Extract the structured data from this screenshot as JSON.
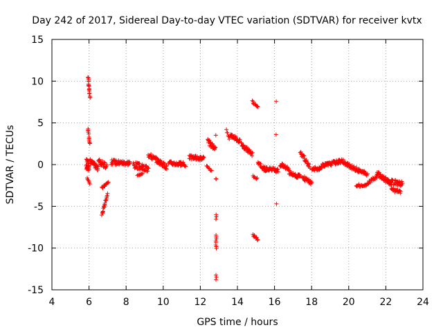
{
  "chart_data": {
    "type": "scatter",
    "title": "Day 242 of 2017, Sidereal Day-to-day VTEC variation (SDTVAR) for receiver kvtx",
    "xlabel": "GPS time / hours",
    "ylabel": "SDTVAR / TECUs",
    "xlim": [
      4,
      24
    ],
    "ylim": [
      -15,
      15
    ],
    "xticks": [
      "4",
      "6",
      "8",
      "10",
      "12",
      "14",
      "16",
      "18",
      "20",
      "22",
      "24"
    ],
    "yticks": [
      "15",
      "10",
      "5",
      "0",
      "-5",
      "-10",
      "-15"
    ],
    "grid": true,
    "marker": "+",
    "color": "#ff0000",
    "series": [
      {
        "name": "SDTVAR",
        "segments": [
          {
            "x0": 5.85,
            "x1": 6.0,
            "y0": 0.0,
            "y1": 0.0,
            "spread": 1.5,
            "n": 25
          },
          {
            "x0": 5.95,
            "x1": 6.05,
            "y0": 10.4,
            "y1": 8.0,
            "spread": 0.3,
            "n": 18
          },
          {
            "x0": 5.95,
            "x1": 6.05,
            "y0": 4.2,
            "y1": 2.5,
            "spread": 0.3,
            "n": 12
          },
          {
            "x0": 5.9,
            "x1": 6.05,
            "y0": -1.5,
            "y1": -2.4,
            "spread": 0.2,
            "n": 6
          },
          {
            "x0": 6.05,
            "x1": 6.5,
            "y0": 0.5,
            "y1": -0.5,
            "spread": 0.6,
            "n": 30
          },
          {
            "x0": 6.5,
            "x1": 6.95,
            "y0": 0.5,
            "y1": -0.3,
            "spread": 0.7,
            "n": 25
          },
          {
            "x0": 6.7,
            "x1": 7.05,
            "y0": -2.8,
            "y1": -2.1,
            "spread": 0.3,
            "n": 14
          },
          {
            "x0": 6.7,
            "x1": 7.0,
            "y0": -6.0,
            "y1": -3.5,
            "spread": 0.3,
            "n": 20
          },
          {
            "x0": 7.2,
            "x1": 8.2,
            "y0": 0.3,
            "y1": 0.2,
            "spread": 0.6,
            "n": 55
          },
          {
            "x0": 8.4,
            "x1": 9.2,
            "y0": 0.0,
            "y1": -0.6,
            "spread": 0.8,
            "n": 45
          },
          {
            "x0": 8.6,
            "x1": 8.9,
            "y0": -1.3,
            "y1": -1.0,
            "spread": 0.2,
            "n": 8
          },
          {
            "x0": 9.2,
            "x1": 10.2,
            "y0": 1.2,
            "y1": -0.3,
            "spread": 0.6,
            "n": 55
          },
          {
            "x0": 10.3,
            "x1": 11.2,
            "y0": 0.2,
            "y1": 0.0,
            "spread": 0.5,
            "n": 45
          },
          {
            "x0": 11.4,
            "x1": 12.2,
            "y0": 0.9,
            "y1": 0.7,
            "spread": 0.5,
            "n": 40
          },
          {
            "x0": 12.4,
            "x1": 12.8,
            "y0": 2.8,
            "y1": 1.8,
            "spread": 0.6,
            "n": 25
          },
          {
            "x0": 12.35,
            "x1": 12.6,
            "y0": -0.2,
            "y1": -0.8,
            "spread": 0.2,
            "n": 8
          },
          {
            "x0": 12.85,
            "x1": 12.85,
            "y0": 3.5,
            "y1": 3.5,
            "spread": 0.1,
            "n": 1
          },
          {
            "x0": 12.85,
            "x1": 12.85,
            "y0": -1.7,
            "y1": -1.7,
            "spread": 0.1,
            "n": 2
          },
          {
            "x0": 12.85,
            "x1": 12.85,
            "y0": -6.0,
            "y1": -6.5,
            "spread": 0.1,
            "n": 3
          },
          {
            "x0": 12.85,
            "x1": 12.85,
            "y0": -8.5,
            "y1": -10.0,
            "spread": 0.1,
            "n": 8
          },
          {
            "x0": 12.85,
            "x1": 12.85,
            "y0": -13.2,
            "y1": -13.8,
            "spread": 0.1,
            "n": 3
          },
          {
            "x0": 13.4,
            "x1": 13.55,
            "y0": 4.2,
            "y1": 3.0,
            "spread": 0.3,
            "n": 6
          },
          {
            "x0": 13.6,
            "x1": 14.15,
            "y0": 3.6,
            "y1": 2.8,
            "spread": 0.5,
            "n": 30
          },
          {
            "x0": 14.2,
            "x1": 14.8,
            "y0": 2.5,
            "y1": 1.2,
            "spread": 0.5,
            "n": 35
          },
          {
            "x0": 14.8,
            "x1": 15.1,
            "y0": 7.6,
            "y1": 6.8,
            "spread": 0.3,
            "n": 10
          },
          {
            "x0": 14.85,
            "x1": 15.1,
            "y0": -8.4,
            "y1": -9.0,
            "spread": 0.3,
            "n": 10
          },
          {
            "x0": 14.85,
            "x1": 15.05,
            "y0": -1.4,
            "y1": -1.7,
            "spread": 0.2,
            "n": 6
          },
          {
            "x0": 15.1,
            "x1": 15.5,
            "y0": 0.3,
            "y1": -0.6,
            "spread": 0.5,
            "n": 18
          },
          {
            "x0": 15.4,
            "x1": 16.2,
            "y0": -0.5,
            "y1": -0.7,
            "spread": 0.5,
            "n": 40
          },
          {
            "x0": 16.1,
            "x1": 16.1,
            "y0": 7.6,
            "y1": 7.6,
            "spread": 0.1,
            "n": 1
          },
          {
            "x0": 16.1,
            "x1": 16.1,
            "y0": 3.6,
            "y1": 3.6,
            "spread": 0.1,
            "n": 1
          },
          {
            "x0": 16.1,
            "x1": 16.1,
            "y0": -4.7,
            "y1": -4.7,
            "spread": 0.1,
            "n": 1
          },
          {
            "x0": 16.3,
            "x1": 16.8,
            "y0": 0.0,
            "y1": -0.5,
            "spread": 0.5,
            "n": 22
          },
          {
            "x0": 16.8,
            "x1": 17.4,
            "y0": -1.0,
            "y1": -1.5,
            "spread": 0.5,
            "n": 30
          },
          {
            "x0": 17.4,
            "x1": 17.9,
            "y0": 1.4,
            "y1": -0.2,
            "spread": 0.5,
            "n": 25
          },
          {
            "x0": 17.5,
            "x1": 18.0,
            "y0": -1.5,
            "y1": -2.2,
            "spread": 0.5,
            "n": 25
          },
          {
            "x0": 18.0,
            "x1": 18.5,
            "y0": -0.5,
            "y1": -0.5,
            "spread": 0.4,
            "n": 22
          },
          {
            "x0": 18.5,
            "x1": 19.7,
            "y0": -0.2,
            "y1": 0.5,
            "spread": 0.5,
            "n": 60
          },
          {
            "x0": 19.7,
            "x1": 21.0,
            "y0": 0.2,
            "y1": -1.2,
            "spread": 0.5,
            "n": 60
          },
          {
            "x0": 20.4,
            "x1": 21.0,
            "y0": -2.5,
            "y1": -2.5,
            "spread": 0.3,
            "n": 20
          },
          {
            "x0": 21.0,
            "x1": 21.5,
            "y0": -2.2,
            "y1": -1.5,
            "spread": 0.4,
            "n": 18
          },
          {
            "x0": 21.5,
            "x1": 22.3,
            "y0": -1.0,
            "y1": -2.3,
            "spread": 0.6,
            "n": 40
          },
          {
            "x0": 22.0,
            "x1": 22.9,
            "y0": -2.0,
            "y1": -2.3,
            "spread": 0.6,
            "n": 40
          },
          {
            "x0": 22.3,
            "x1": 22.8,
            "y0": -3.0,
            "y1": -3.3,
            "spread": 0.4,
            "n": 20
          }
        ]
      }
    ]
  }
}
